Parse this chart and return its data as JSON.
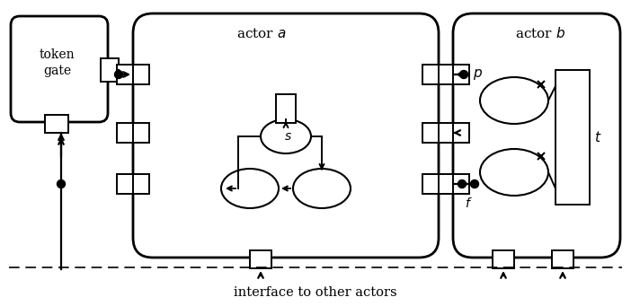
{
  "bg": "#ffffff",
  "lc": "#000000",
  "token_gate": "token\ngate",
  "actor_a": "actor $a$",
  "actor_b": "actor $b$",
  "label_s": "$s$",
  "label_f": "$f$",
  "label_p": "$p$",
  "label_t": "$t$",
  "interface_label": "interface to other actors"
}
